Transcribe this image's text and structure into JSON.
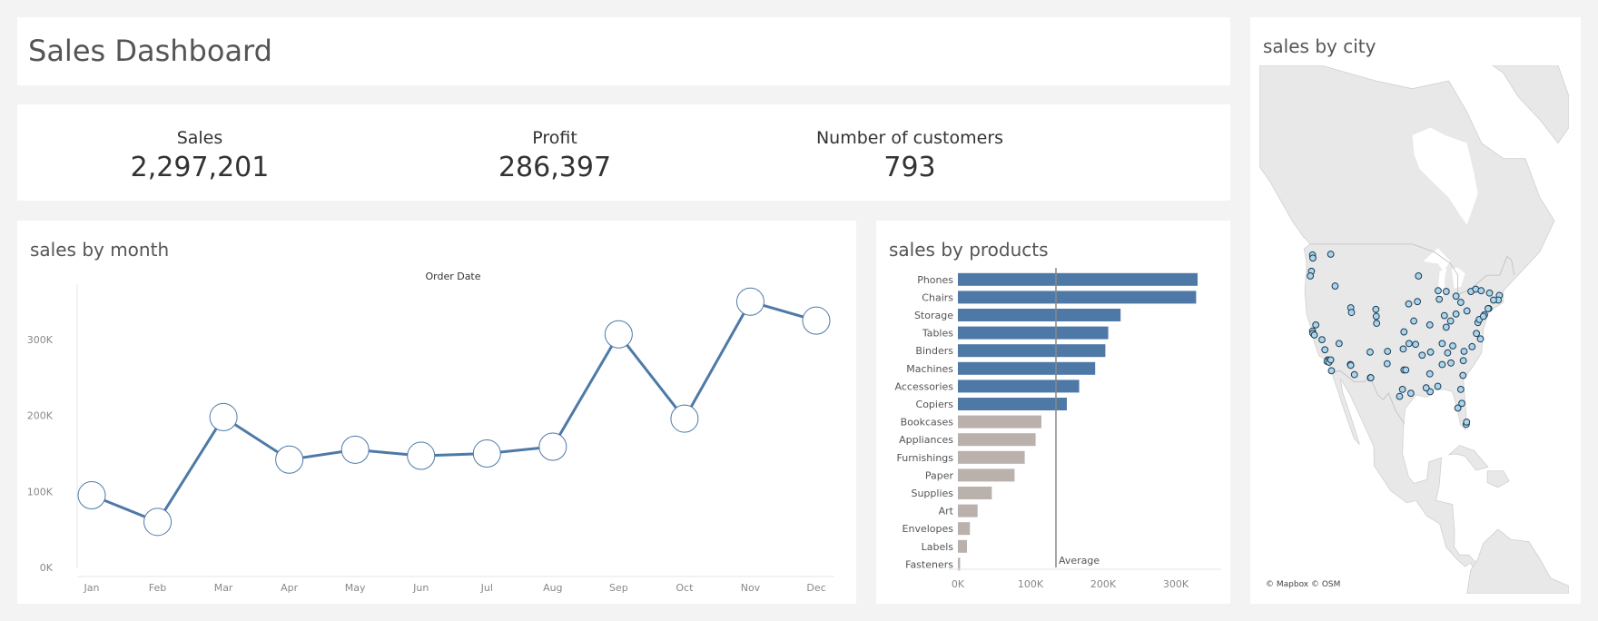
{
  "header": {
    "title": "Sales Dashboard"
  },
  "kpis": [
    {
      "label": "Sales",
      "value": "2,297,201"
    },
    {
      "label": "Profit",
      "value": "286,397"
    },
    {
      "label": "Number of customers",
      "value": "793"
    }
  ],
  "colors": {
    "accent_blue": "#4e79a7",
    "muted_gray": "#bab0ac",
    "map_land": "#e8e8e8",
    "map_water": "#ffffff"
  },
  "chart_data": [
    {
      "type": "line",
      "title": "sales by month",
      "xlabel": "Order Date",
      "ylabel": "",
      "categories": [
        "Jan",
        "Feb",
        "Mar",
        "Apr",
        "May",
        "Jun",
        "Jul",
        "Aug",
        "Sep",
        "Oct",
        "Nov",
        "Dec"
      ],
      "values": [
        95000,
        60000,
        198000,
        142000,
        155000,
        147000,
        150000,
        159000,
        307000,
        196000,
        350000,
        325000
      ],
      "y_ticks": [
        "0K",
        "100K",
        "200K",
        "300K"
      ],
      "ylim": [
        0,
        385000
      ],
      "grid": false,
      "marker": "open-circle"
    },
    {
      "type": "bar",
      "orientation": "horizontal",
      "title": "sales by products",
      "categories": [
        "Phones",
        "Chairs",
        "Storage",
        "Tables",
        "Binders",
        "Machines",
        "Accessories",
        "Copiers",
        "Bookcases",
        "Appliances",
        "Furnishings",
        "Paper",
        "Supplies",
        "Art",
        "Envelopes",
        "Labels",
        "Fasteners"
      ],
      "values": [
        330000,
        328000,
        224000,
        207000,
        203000,
        189000,
        167000,
        150000,
        115000,
        107000,
        92000,
        78000,
        46700,
        27100,
        16500,
        12500,
        3000
      ],
      "highlight_count": 8,
      "x_ticks": [
        "0K",
        "100K",
        "200K",
        "300K"
      ],
      "xlim": [
        0,
        350000
      ],
      "reference_line": {
        "label": "Average",
        "value": 135000
      },
      "grid": false
    },
    {
      "type": "scatter",
      "title": "sales by city",
      "credit": "© Mapbox © OSM",
      "x_unit": "longitude",
      "y_unit": "latitude",
      "points": [
        [
          -122.4,
          47.6
        ],
        [
          -122.3,
          47.2
        ],
        [
          -122.7,
          45.5
        ],
        [
          -123.0,
          44.9
        ],
        [
          -117.4,
          47.7
        ],
        [
          -116.2,
          43.6
        ],
        [
          -111.9,
          40.8
        ],
        [
          -111.7,
          40.2
        ],
        [
          -112.0,
          33.5
        ],
        [
          -111.9,
          33.4
        ],
        [
          -110.9,
          32.2
        ],
        [
          -106.6,
          35.1
        ],
        [
          -106.5,
          31.8
        ],
        [
          -104.9,
          39.7
        ],
        [
          -104.8,
          38.8
        ],
        [
          -105.0,
          40.6
        ],
        [
          -122.4,
          37.8
        ],
        [
          -122.3,
          37.5
        ],
        [
          -121.9,
          37.3
        ],
        [
          -121.5,
          38.6
        ],
        [
          -119.8,
          36.7
        ],
        [
          -118.2,
          34.1
        ],
        [
          -118.4,
          33.9
        ],
        [
          -117.9,
          33.8
        ],
        [
          -117.2,
          32.7
        ],
        [
          -117.4,
          34.1
        ],
        [
          -115.1,
          36.2
        ],
        [
          -119.0,
          35.4
        ],
        [
          -97.7,
          30.3
        ],
        [
          -97.3,
          32.8
        ],
        [
          -96.8,
          32.8
        ],
        [
          -95.4,
          29.8
        ],
        [
          -98.5,
          29.4
        ],
        [
          -97.5,
          35.5
        ],
        [
          -95.9,
          36.2
        ],
        [
          -97.3,
          37.7
        ],
        [
          -94.6,
          39.1
        ],
        [
          -96.0,
          41.3
        ],
        [
          -93.3,
          44.9
        ],
        [
          -93.6,
          41.6
        ],
        [
          -90.2,
          38.6
        ],
        [
          -87.6,
          41.9
        ],
        [
          -87.9,
          43.0
        ],
        [
          -86.2,
          39.8
        ],
        [
          -85.7,
          38.3
        ],
        [
          -84.5,
          39.1
        ],
        [
          -83.0,
          40.0
        ],
        [
          -81.7,
          41.5
        ],
        [
          -83.0,
          42.3
        ],
        [
          -85.7,
          42.9
        ],
        [
          -80.0,
          40.4
        ],
        [
          -86.8,
          36.2
        ],
        [
          -90.0,
          35.1
        ],
        [
          -86.8,
          33.5
        ],
        [
          -90.2,
          32.3
        ],
        [
          -90.1,
          30.0
        ],
        [
          -91.2,
          30.5
        ],
        [
          -84.4,
          33.7
        ],
        [
          -81.1,
          32.1
        ],
        [
          -81.7,
          30.3
        ],
        [
          -82.5,
          27.9
        ],
        [
          -81.4,
          28.5
        ],
        [
          -80.2,
          25.8
        ],
        [
          -80.1,
          26.1
        ],
        [
          -80.8,
          35.2
        ],
        [
          -78.6,
          35.8
        ],
        [
          -81.0,
          34.0
        ],
        [
          -77.4,
          37.5
        ],
        [
          -76.3,
          36.8
        ],
        [
          -77.0,
          38.9
        ],
        [
          -76.6,
          39.3
        ],
        [
          -75.2,
          39.9
        ],
        [
          -74.0,
          40.7
        ],
        [
          -74.2,
          40.7
        ],
        [
          -73.8,
          42.7
        ],
        [
          -71.1,
          42.4
        ],
        [
          -71.4,
          41.8
        ],
        [
          -72.7,
          41.8
        ],
        [
          -78.9,
          42.9
        ],
        [
          -77.6,
          43.2
        ],
        [
          -92.3,
          34.7
        ],
        [
          -94.1,
          36.1
        ],
        [
          -101.8,
          35.2
        ],
        [
          -101.9,
          33.6
        ],
        [
          -106.4,
          31.8
        ],
        [
          -88.0,
          30.7
        ],
        [
          -85.3,
          35.0
        ],
        [
          -83.9,
          35.9
        ],
        [
          -76.1,
          43.0
        ],
        [
          -75.5,
          39.7
        ]
      ]
    }
  ]
}
